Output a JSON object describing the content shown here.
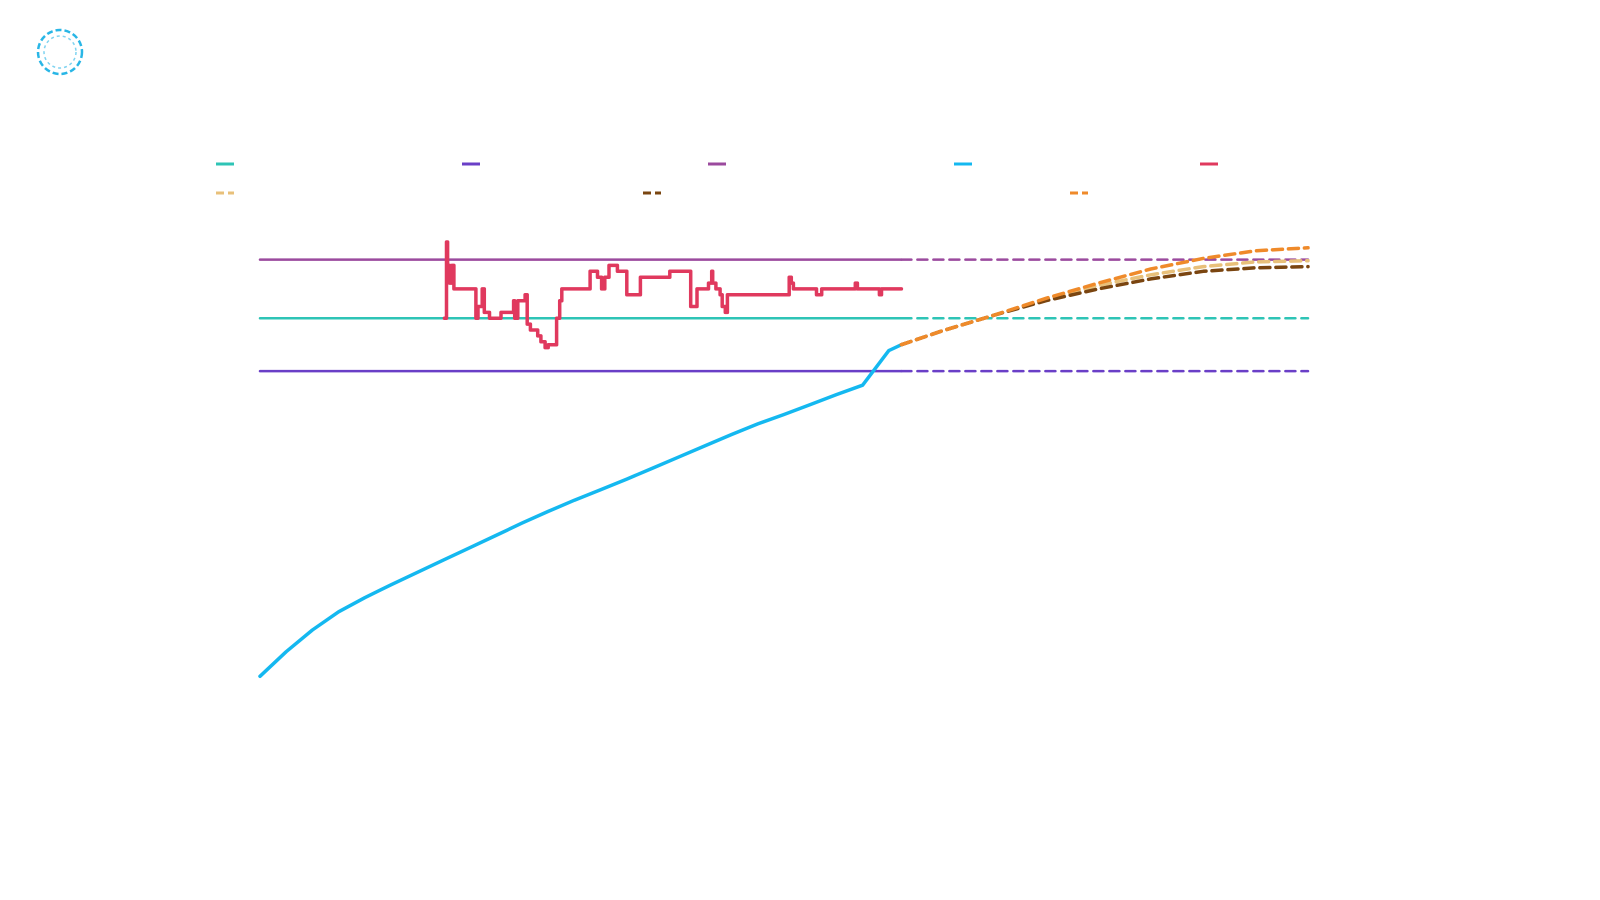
{
  "logo": {
    "icon": "dashed-circle-logo-icon",
    "color": "#29b6e6"
  },
  "chart_data": {
    "type": "line",
    "title": "",
    "xlabel": "",
    "ylabel": "",
    "xlim": [
      0,
      100
    ],
    "ylim": [
      0,
      100
    ],
    "grid": false,
    "legend": [
      {
        "name": "",
        "color": "#2ec4b6",
        "dash": false
      },
      {
        "name": "",
        "color": "#6a3fc7",
        "dash": false
      },
      {
        "name": "",
        "color": "#9b4a9e",
        "dash": false
      },
      {
        "name": "",
        "color": "#14b8f0",
        "dash": false
      },
      {
        "name": "",
        "color": "#e0395e",
        "dash": false
      },
      {
        "name": "",
        "color": "#e8c07a",
        "dash": true
      },
      {
        "name": "",
        "color": "#7a4510",
        "dash": true
      },
      {
        "name": "",
        "color": "#ef8a2a",
        "dash": true
      }
    ],
    "series": [
      {
        "key": "target_mid",
        "color": "#2ec4b6",
        "dash": false,
        "x": [
          0,
          61.2
        ],
        "y": [
          79,
          79
        ]
      },
      {
        "key": "target_mid_proj",
        "color": "#2ec4b6",
        "dash": true,
        "x": [
          61.2,
          100
        ],
        "y": [
          79,
          79
        ]
      },
      {
        "key": "target_low",
        "color": "#6a3fc7",
        "dash": false,
        "x": [
          0,
          61.2
        ],
        "y": [
          70,
          70
        ]
      },
      {
        "key": "target_low_proj",
        "color": "#6a3fc7",
        "dash": true,
        "x": [
          61.2,
          100
        ],
        "y": [
          70,
          70
        ]
      },
      {
        "key": "target_high",
        "color": "#9b4a9e",
        "dash": false,
        "x": [
          0,
          61.2
        ],
        "y": [
          89,
          89
        ]
      },
      {
        "key": "target_high_proj",
        "color": "#9b4a9e",
        "dash": true,
        "x": [
          61.2,
          100
        ],
        "y": [
          89,
          89
        ]
      },
      {
        "key": "cumulative",
        "color": "#14b8f0",
        "dash": false,
        "x": [
          0,
          2.5,
          5,
          7.5,
          10,
          12.5,
          15,
          17.5,
          20,
          22.5,
          25,
          27.5,
          30,
          32.5,
          35,
          37.5,
          40,
          42.5,
          45,
          47.5,
          50,
          52.5,
          55,
          57.5,
          60,
          61.2
        ],
        "y": [
          18,
          22.2,
          25.9,
          29,
          31.4,
          33.6,
          35.7,
          37.8,
          39.9,
          42,
          44.1,
          46.1,
          48,
          49.8,
          51.6,
          53.5,
          55.4,
          57.3,
          59.2,
          61,
          62.6,
          64.3,
          66,
          67.6,
          73.5,
          74.5
        ]
      },
      {
        "key": "rate",
        "color": "#e0395e",
        "dash": false,
        "step": true,
        "x": [
          17.6,
          17.8,
          17.9,
          18.0,
          18.1,
          18.3,
          18.5,
          20.6,
          20.8,
          21.2,
          21.4,
          21.9,
          22.2,
          23.0,
          24.2,
          24.3,
          24.6,
          25.3,
          25.5,
          25.8,
          26.3,
          26.5,
          26.8,
          27.2,
          27.5,
          28.0,
          28.3,
          28.6,
          28.8,
          31.5,
          31.8,
          32.0,
          32.2,
          32.6,
          32.9,
          33.3,
          34.1,
          35.0,
          36.3,
          39.1,
          40.0,
          41.1,
          41.7,
          42.8,
          43.1,
          43.2,
          43.5,
          43.9,
          44.1,
          44.4,
          44.6,
          50.5,
          50.7,
          50.9,
          51.4,
          53.1,
          53.6,
          55.5,
          56.8,
          57.0,
          57.5,
          59.1,
          59.3,
          60.0,
          61.2
        ],
        "y": [
          79,
          92,
          86,
          88,
          85,
          88,
          84,
          79,
          81,
          84,
          80,
          79,
          79,
          80,
          82,
          79,
          82,
          83,
          78,
          77,
          77,
          76,
          75,
          74,
          74.5,
          74.5,
          79,
          82,
          84,
          87,
          87,
          87,
          86,
          84,
          86,
          88,
          87,
          83,
          86,
          87,
          87,
          81,
          84,
          85,
          87,
          85,
          84,
          83,
          81,
          80,
          83,
          86,
          85,
          84,
          84,
          83,
          84,
          84,
          85,
          84,
          84,
          83,
          84,
          84,
          84
        ]
      },
      {
        "key": "proj_low",
        "color": "#e8c07a",
        "dash": true,
        "x": [
          61.2,
          65,
          70,
          75,
          80,
          85,
          90,
          95,
          100
        ],
        "y": [
          74.5,
          76.8,
          79.5,
          82.3,
          84.6,
          86.4,
          87.8,
          88.6,
          88.8
        ]
      },
      {
        "key": "proj_mid",
        "color": "#7a4510",
        "dash": true,
        "x": [
          61.2,
          65,
          70,
          75,
          80,
          85,
          90,
          95,
          100
        ],
        "y": [
          74.5,
          76.8,
          79.5,
          82.0,
          84.0,
          85.7,
          87.0,
          87.6,
          87.8
        ]
      },
      {
        "key": "proj_high",
        "color": "#ef8a2a",
        "dash": true,
        "x": [
          61.2,
          65,
          70,
          75,
          80,
          85,
          90,
          95,
          100
        ],
        "y": [
          74.5,
          76.8,
          79.5,
          82.4,
          85.0,
          87.4,
          89.2,
          90.5,
          91.0
        ]
      }
    ]
  }
}
